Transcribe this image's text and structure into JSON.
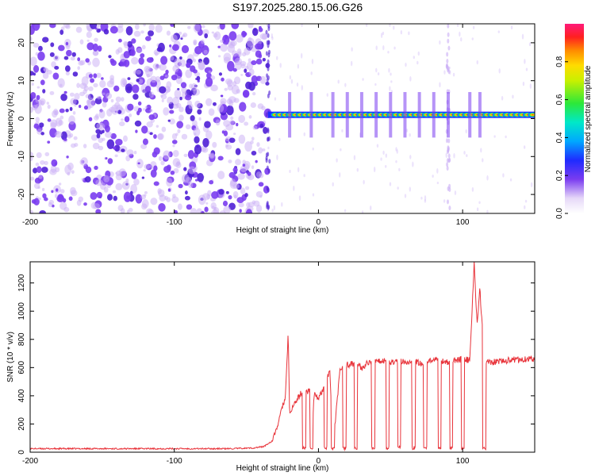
{
  "title": "S197.2025.280.15.06.G26",
  "chart_data": [
    {
      "type": "heatmap",
      "xlabel": "Height of straight line (km)",
      "ylabel": "Frequency (Hz)",
      "xlim": [
        -200,
        150
      ],
      "ylim": [
        -25,
        25
      ],
      "xticks": [
        -200,
        -100,
        0,
        100
      ],
      "yticks": [
        -20,
        -10,
        0,
        10,
        20
      ],
      "colorbar": {
        "label": "Normalized spectral amplitude",
        "range": [
          0,
          1
        ],
        "ticks": [
          "0.0",
          "0.2",
          "0.4",
          "0.6",
          "0.8"
        ]
      },
      "features": {
        "noise_region_x": [
          -200,
          -35
        ],
        "noise_color": "#6a2be0",
        "signal_line_start_km": -35,
        "signal_line_freq_hz": 1,
        "gap_pulses_km": [
          -20,
          -5,
          10,
          20,
          30,
          40,
          50,
          60,
          70,
          80,
          90,
          105,
          112
        ],
        "vertical_streaks_km": [
          -35,
          90
        ]
      }
    },
    {
      "type": "line",
      "xlabel": "Height of straight line (km)",
      "ylabel": "SNR (10 * v/v)",
      "xlim": [
        -200,
        150
      ],
      "ylim": [
        0,
        1350
      ],
      "xticks": [
        -200,
        -100,
        0,
        100
      ],
      "yticks": [
        0,
        200,
        400,
        600,
        800,
        1000,
        1200
      ],
      "color": "#e8333a",
      "series": [
        {
          "x": [
            -200,
            -150,
            -100,
            -60,
            -45,
            -38,
            -32,
            -28,
            -25,
            -23,
            -21,
            -20,
            -18,
            -15,
            -12,
            -10,
            -8,
            -6,
            -5,
            -3,
            0,
            3,
            5,
            8,
            10,
            15,
            20,
            25,
            30,
            35,
            40,
            45,
            50,
            55,
            60,
            65,
            70,
            75,
            80,
            85,
            90,
            95,
            100,
            105,
            108,
            110,
            112,
            115,
            120,
            130,
            140,
            150
          ],
          "y": [
            25,
            25,
            25,
            25,
            30,
            40,
            80,
            200,
            330,
            380,
            840,
            260,
            320,
            370,
            420,
            380,
            430,
            440,
            30,
            420,
            380,
            430,
            520,
            560,
            30,
            590,
            620,
            630,
            600,
            640,
            640,
            650,
            640,
            650,
            640,
            650,
            630,
            640,
            650,
            650,
            640,
            650,
            660,
            650,
            1340,
            900,
            1160,
            650,
            640,
            650,
            660,
            660
          ]
        }
      ],
      "drops_to_baseline_km": [
        -10,
        -5,
        5,
        10,
        18,
        26,
        38,
        48,
        56,
        66,
        74,
        84,
        92,
        100,
        115
      ]
    }
  ]
}
